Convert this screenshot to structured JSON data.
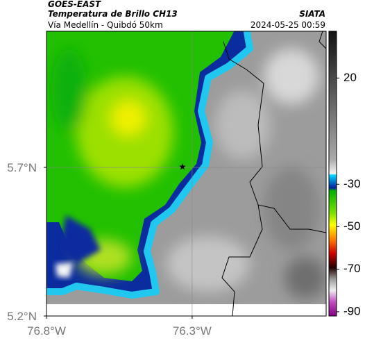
{
  "header": {
    "title": "GOES-EAST",
    "subtitle": "Temperatura de Brillo CH13",
    "route": "Vía Medellín - Quibdó 50km",
    "source": "SIATA",
    "timestamp": "2024-05-25 00:59"
  },
  "map": {
    "lonlim": [
      -76.8,
      -75.84
    ],
    "latlim": [
      5.2,
      6.158
    ],
    "lon_ticks": [
      {
        "value": -76.8,
        "label": "76.8°W"
      },
      {
        "value": -76.3,
        "label": "76.3°W"
      }
    ],
    "lat_ticks": [
      {
        "value": 5.7,
        "label": "5.7°N"
      },
      {
        "value": 5.2,
        "label": "5.2°N"
      }
    ],
    "grid": true,
    "marker": {
      "lon": -76.333,
      "lat": 5.702
    }
  },
  "colorbar": {
    "range": [
      -92,
      42
    ],
    "ticks": [
      20,
      -30,
      -50,
      -70,
      -90
    ]
  }
}
